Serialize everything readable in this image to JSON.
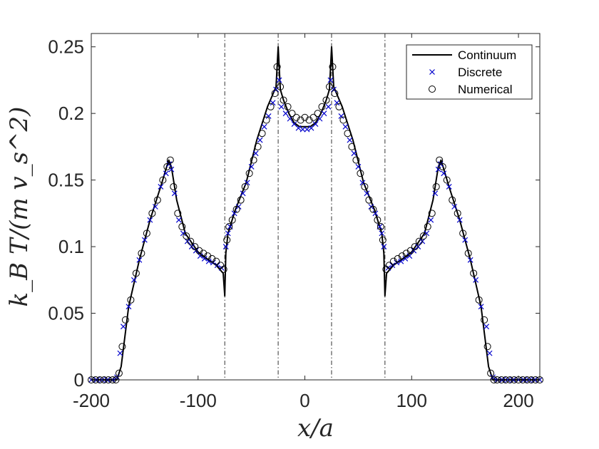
{
  "chart_data": {
    "type": "line",
    "title": "",
    "xlabel": "x/a",
    "ylabel": "k_B T/(m v_s^2)",
    "xlim": [
      -200,
      220
    ],
    "ylim": [
      0,
      0.26
    ],
    "xticks": [
      -200,
      -100,
      0,
      100,
      200
    ],
    "xtick_labels": [
      "-200",
      "-100",
      "0",
      "100",
      "200"
    ],
    "yticks": [
      0,
      0.05,
      0.1,
      0.15,
      0.2,
      0.25
    ],
    "ytick_labels": [
      "0",
      "0.05",
      "0.1",
      "0.15",
      "0.2",
      "0.25"
    ],
    "vertical_lines": [
      -75,
      -25,
      25,
      75
    ],
    "legend": {
      "placement": "top-right",
      "entries": [
        "Continuum",
        "Discrete",
        "Numerical"
      ]
    },
    "series": [
      {
        "name": "Continuum",
        "style": "solid-line",
        "x": [
          -200,
          -176,
          -172,
          -165,
          -155,
          -145,
          -135,
          -127.5,
          -125,
          -120,
          -112,
          -100,
          -90,
          -83,
          -76.5,
          -75,
          -74,
          -72,
          -65,
          -55,
          -45,
          -35,
          -27,
          -25,
          -23,
          -20,
          -15,
          -10,
          -5,
          0,
          5,
          10,
          15,
          20,
          23,
          25,
          27,
          35,
          45,
          55,
          65,
          72,
          74,
          75,
          76.5,
          83,
          90,
          100,
          112,
          120,
          125,
          127.5,
          135,
          145,
          155,
          165,
          172,
          176,
          180,
          220
        ],
        "y": [
          0,
          0,
          0.01,
          0.055,
          0.09,
          0.12,
          0.145,
          0.165,
          0.16,
          0.135,
          0.11,
          0.096,
          0.09,
          0.086,
          0.08,
          0.063,
          0.095,
          0.11,
          0.128,
          0.148,
          0.18,
          0.205,
          0.22,
          0.25,
          0.218,
          0.21,
          0.2,
          0.193,
          0.19,
          0.19,
          0.19,
          0.193,
          0.2,
          0.21,
          0.218,
          0.25,
          0.22,
          0.205,
          0.18,
          0.148,
          0.128,
          0.11,
          0.095,
          0.063,
          0.08,
          0.086,
          0.09,
          0.096,
          0.11,
          0.135,
          0.16,
          0.165,
          0.145,
          0.12,
          0.09,
          0.055,
          0.01,
          0,
          0,
          0
        ]
      },
      {
        "name": "Discrete",
        "style": "x-marker",
        "color": "#0000cc",
        "x": [
          -200,
          -195,
          -190,
          -185,
          -180,
          -176,
          -173,
          -170,
          -165,
          -160,
          -155,
          -150,
          -145,
          -140,
          -135,
          -130,
          -127,
          -125,
          -122,
          -118,
          -114,
          -110,
          -106,
          -102,
          -98,
          -94,
          -90,
          -86,
          -82,
          -78,
          -74,
          -72,
          -70,
          -66,
          -62,
          -58,
          -54,
          -50,
          -46,
          -42,
          -38,
          -34,
          -30,
          -27,
          -24,
          -22,
          -18,
          -14,
          -10,
          -6,
          -2,
          2,
          6,
          10,
          14,
          18,
          22,
          24,
          27,
          30,
          34,
          38,
          42,
          46,
          50,
          54,
          58,
          62,
          66,
          70,
          72,
          74,
          78,
          82,
          86,
          90,
          94,
          98,
          102,
          106,
          110,
          114,
          118,
          122,
          125,
          127,
          130,
          135,
          140,
          145,
          150,
          155,
          160,
          165,
          170,
          173,
          176,
          180,
          185,
          190,
          195,
          200,
          205,
          210,
          215,
          220
        ],
        "y": [
          0,
          0,
          0,
          0,
          0,
          0.002,
          0.02,
          0.04,
          0.055,
          0.075,
          0.09,
          0.105,
          0.12,
          0.13,
          0.145,
          0.155,
          0.162,
          0.158,
          0.14,
          0.12,
          0.11,
          0.104,
          0.1,
          0.097,
          0.093,
          0.091,
          0.089,
          0.088,
          0.086,
          0.084,
          0.1,
          0.11,
          0.115,
          0.125,
          0.13,
          0.14,
          0.148,
          0.16,
          0.17,
          0.18,
          0.19,
          0.198,
          0.208,
          0.218,
          0.225,
          0.205,
          0.2,
          0.196,
          0.192,
          0.189,
          0.188,
          0.188,
          0.189,
          0.192,
          0.196,
          0.2,
          0.205,
          0.225,
          0.218,
          0.208,
          0.198,
          0.19,
          0.18,
          0.17,
          0.16,
          0.148,
          0.14,
          0.13,
          0.125,
          0.115,
          0.11,
          0.1,
          0.084,
          0.086,
          0.088,
          0.089,
          0.091,
          0.093,
          0.097,
          0.1,
          0.104,
          0.11,
          0.12,
          0.14,
          0.158,
          0.162,
          0.155,
          0.145,
          0.13,
          0.12,
          0.105,
          0.09,
          0.075,
          0.055,
          0.04,
          0.02,
          0.002,
          0,
          0,
          0,
          0,
          0,
          0,
          0,
          0,
          0
        ]
      },
      {
        "name": "Numerical",
        "style": "circle-marker",
        "x": [
          -200,
          -196,
          -192,
          -188,
          -184,
          -180,
          -177,
          -174,
          -171,
          -168,
          -163,
          -158,
          -153,
          -148,
          -143,
          -138,
          -133,
          -129,
          -126,
          -123,
          -119,
          -115,
          -111,
          -107,
          -103,
          -99,
          -95,
          -91,
          -87,
          -83,
          -79,
          -76,
          -73,
          -71,
          -68,
          -64,
          -60,
          -56,
          -52,
          -48,
          -44,
          -40,
          -36,
          -32,
          -28,
          -26,
          -23,
          -20,
          -16,
          -12,
          -8,
          -4,
          0,
          4,
          8,
          12,
          16,
          20,
          23,
          26,
          28,
          32,
          36,
          40,
          44,
          48,
          52,
          56,
          60,
          64,
          68,
          71,
          73,
          76,
          79,
          83,
          87,
          91,
          95,
          99,
          103,
          107,
          111,
          115,
          119,
          123,
          126,
          129,
          133,
          138,
          143,
          148,
          153,
          158,
          163,
          168,
          171,
          174,
          177,
          180,
          184,
          188,
          192,
          196,
          200,
          204,
          208,
          212,
          216,
          220
        ],
        "y": [
          0,
          0,
          0,
          0,
          0,
          0,
          0,
          0.005,
          0.025,
          0.045,
          0.06,
          0.08,
          0.095,
          0.11,
          0.125,
          0.135,
          0.15,
          0.16,
          0.165,
          0.145,
          0.125,
          0.115,
          0.108,
          0.104,
          0.1,
          0.097,
          0.095,
          0.093,
          0.091,
          0.089,
          0.086,
          0.083,
          0.105,
          0.115,
          0.12,
          0.128,
          0.135,
          0.145,
          0.155,
          0.165,
          0.175,
          0.185,
          0.195,
          0.205,
          0.215,
          0.235,
          0.22,
          0.21,
          0.205,
          0.2,
          0.197,
          0.195,
          0.197,
          0.195,
          0.197,
          0.2,
          0.205,
          0.21,
          0.22,
          0.235,
          0.215,
          0.205,
          0.195,
          0.185,
          0.175,
          0.165,
          0.155,
          0.145,
          0.135,
          0.128,
          0.12,
          0.115,
          0.105,
          0.083,
          0.086,
          0.089,
          0.091,
          0.093,
          0.095,
          0.097,
          0.1,
          0.104,
          0.108,
          0.115,
          0.125,
          0.145,
          0.165,
          0.16,
          0.15,
          0.135,
          0.125,
          0.11,
          0.095,
          0.08,
          0.06,
          0.045,
          0.025,
          0.005,
          0,
          0,
          0,
          0,
          0,
          0,
          0,
          0,
          0,
          0,
          0,
          0
        ]
      }
    ]
  }
}
